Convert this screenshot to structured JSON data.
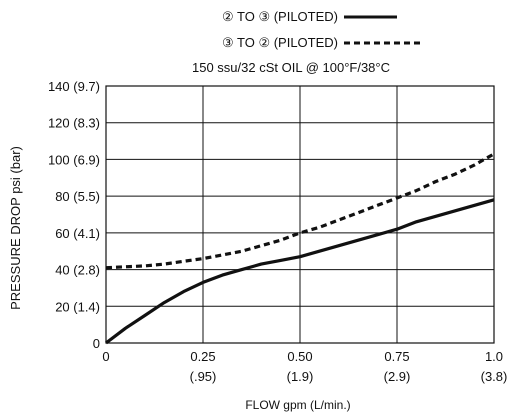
{
  "chart_data": {
    "type": "line",
    "legend": {
      "placement": "top-center",
      "entries": [
        {
          "label": "② TO ③ (PILOTED)",
          "style": "solid"
        },
        {
          "label": "③ TO ② (PILOTED)",
          "style": "dashed"
        }
      ]
    },
    "subtitle": "150 ssu/32 cSt OIL @ 100°F/38°C",
    "ylabel": "PRESSURE  DROP psi  (bar)",
    "xlabel": "FLOW gpm (L/min.)",
    "xlim": [
      0,
      1.0
    ],
    "ylim": [
      0,
      140
    ],
    "grid": true,
    "x_ticks": [
      {
        "value": 0,
        "label": "0",
        "sub": ""
      },
      {
        "value": 0.25,
        "label": "0.25",
        "sub": "(.95)"
      },
      {
        "value": 0.5,
        "label": "0.50",
        "sub": "(1.9)"
      },
      {
        "value": 0.75,
        "label": "0.75",
        "sub": "(2.9)"
      },
      {
        "value": 1.0,
        "label": "1.0",
        "sub": "(3.8)"
      }
    ],
    "y_ticks": [
      {
        "value": 0,
        "label": "0"
      },
      {
        "value": 20,
        "label": "20 (1.4)"
      },
      {
        "value": 40,
        "label": "40 (2.8)"
      },
      {
        "value": 60,
        "label": "60 (4.1)"
      },
      {
        "value": 80,
        "label": "80 (5.5)"
      },
      {
        "value": 100,
        "label": "100 (6.9)"
      },
      {
        "value": 120,
        "label": "120 (8.3)"
      },
      {
        "value": 140,
        "label": "140 (9.7)"
      }
    ],
    "series": [
      {
        "name": "② TO ③ (PILOTED)",
        "style": "solid",
        "x": [
          0,
          0.05,
          0.1,
          0.15,
          0.2,
          0.25,
          0.3,
          0.35,
          0.4,
          0.45,
          0.5,
          0.55,
          0.6,
          0.65,
          0.7,
          0.75,
          0.8,
          0.85,
          0.9,
          0.95,
          1.0
        ],
        "y": [
          0,
          8,
          15,
          22,
          28,
          33,
          37,
          40,
          43,
          45,
          47,
          50,
          53,
          56,
          59,
          62,
          66,
          69,
          72,
          75,
          78
        ]
      },
      {
        "name": "③ TO ② (PILOTED)",
        "style": "dashed",
        "x": [
          0,
          0.05,
          0.1,
          0.15,
          0.2,
          0.25,
          0.3,
          0.35,
          0.4,
          0.45,
          0.5,
          0.55,
          0.6,
          0.65,
          0.7,
          0.75,
          0.8,
          0.85,
          0.9,
          0.95,
          1.0
        ],
        "y": [
          41,
          41.5,
          42,
          43,
          44.5,
          46,
          48,
          50,
          53,
          56,
          60,
          63,
          67,
          71,
          75,
          79,
          83,
          88,
          92,
          97,
          103
        ]
      }
    ]
  }
}
